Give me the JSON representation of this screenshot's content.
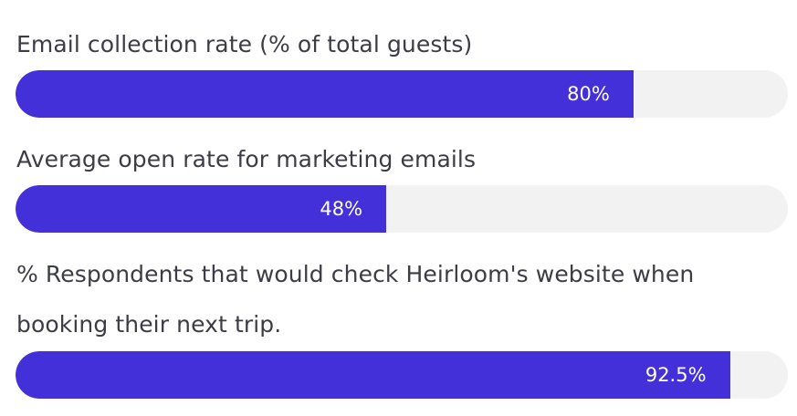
{
  "chart_data": {
    "type": "bar",
    "orientation": "horizontal",
    "unit": "%",
    "xlim": [
      0,
      100
    ],
    "fill_color": "#4430d9",
    "track_color": "#f2f2f2",
    "bars": [
      {
        "label": "Email collection rate (% of total guests)",
        "value": 80,
        "value_label": "80%"
      },
      {
        "label": "Average open rate for marketing emails",
        "value": 48,
        "value_label": "48%"
      },
      {
        "label_lines": [
          "% Respondents that would check Heirloom's website when",
          "booking their next trip."
        ],
        "value": 92.5,
        "value_label": "92.5%"
      }
    ]
  }
}
